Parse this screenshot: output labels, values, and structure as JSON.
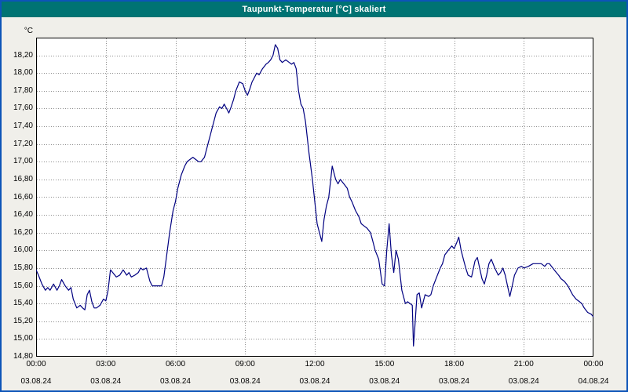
{
  "window": {
    "title": "Taupunkt-Temperatur [°C] skaliert",
    "title_bar_color": "#007373",
    "border_color": "#0d54b8",
    "background_color": "#f0efea"
  },
  "chart_data": {
    "type": "line",
    "title": "Taupunkt-Temperatur [°C] skaliert",
    "xlabel": "",
    "ylabel": "°C",
    "ylim": [
      14.8,
      18.4
    ],
    "xlim_hours": [
      0,
      24
    ],
    "grid": "dotted",
    "grid_color": "#8f8f8f",
    "line_color": "#000080",
    "legend": "none",
    "y_ticks": {
      "values": [
        18.2,
        18.0,
        17.8,
        17.6,
        17.4,
        17.2,
        17.0,
        16.8,
        16.6,
        16.4,
        16.2,
        16.0,
        15.8,
        15.6,
        15.4,
        15.2,
        15.0,
        14.8
      ],
      "labels": [
        "18,20",
        "18,00",
        "17,80",
        "17,60",
        "17,40",
        "17,20",
        "17,00",
        "16,80",
        "16,60",
        "16,40",
        "16,20",
        "16,00",
        "15,80",
        "15,60",
        "15,40",
        "15,20",
        "15,00",
        "14,80"
      ]
    },
    "x_ticks": {
      "hours": [
        0,
        3,
        6,
        9,
        12,
        15,
        18,
        21,
        24
      ],
      "time_labels": [
        "00:00",
        "03:00",
        "06:00",
        "09:00",
        "12:00",
        "15:00",
        "18:00",
        "21:00",
        "00:00"
      ],
      "date_labels": [
        "03.08.24",
        "03.08.24",
        "03.08.24",
        "03.08.24",
        "03.08.24",
        "03.08.24",
        "03.08.24",
        "03.08.24",
        "04.08.24"
      ]
    },
    "series": [
      {
        "name": "Taupunkt-Temperatur",
        "x": [
          0,
          0.1,
          0.25,
          0.4,
          0.5,
          0.6,
          0.75,
          0.9,
          1,
          1.1,
          1.25,
          1.4,
          1.5,
          1.6,
          1.75,
          1.9,
          2,
          2.1,
          2.2,
          2.3,
          2.4,
          2.5,
          2.6,
          2.75,
          2.9,
          3,
          3.1,
          3.2,
          3.3,
          3.45,
          3.6,
          3.75,
          3.9,
          4,
          4.1,
          4.25,
          4.4,
          4.5,
          4.6,
          4.75,
          4.9,
          5,
          5.2,
          5.4,
          5.5,
          5.6,
          5.75,
          5.9,
          6,
          6.1,
          6.25,
          6.4,
          6.5,
          6.6,
          6.75,
          6.9,
          7,
          7.1,
          7.25,
          7.4,
          7.5,
          7.6,
          7.75,
          7.9,
          8,
          8.1,
          8.2,
          8.3,
          8.4,
          8.5,
          8.6,
          8.75,
          8.9,
          9,
          9.1,
          9.2,
          9.3,
          9.4,
          9.5,
          9.6,
          9.75,
          9.9,
          10,
          10.1,
          10.2,
          10.3,
          10.4,
          10.5,
          10.6,
          10.75,
          10.9,
          11,
          11.1,
          11.2,
          11.3,
          11.4,
          11.5,
          11.6,
          11.75,
          11.9,
          12,
          12.1,
          12.2,
          12.3,
          12.4,
          12.5,
          12.6,
          12.75,
          12.9,
          13,
          13.1,
          13.25,
          13.4,
          13.5,
          13.6,
          13.75,
          13.9,
          14,
          14.1,
          14.25,
          14.4,
          14.5,
          14.6,
          14.75,
          14.9,
          15,
          15.1,
          15.2,
          15.3,
          15.4,
          15.5,
          15.6,
          15.75,
          15.9,
          16,
          16.1,
          16.2,
          16.25,
          16.3,
          16.4,
          16.5,
          16.6,
          16.75,
          16.9,
          17,
          17.1,
          17.25,
          17.4,
          17.5,
          17.6,
          17.75,
          17.9,
          18,
          18.1,
          18.2,
          18.3,
          18.4,
          18.5,
          18.6,
          18.75,
          18.9,
          19,
          19.1,
          19.2,
          19.3,
          19.4,
          19.5,
          19.6,
          19.75,
          19.9,
          20,
          20.1,
          20.2,
          20.3,
          20.4,
          20.5,
          20.6,
          20.75,
          20.9,
          21,
          21.2,
          21.4,
          21.6,
          21.75,
          21.9,
          22,
          22.1,
          22.25,
          22.4,
          22.5,
          22.6,
          22.75,
          22.9,
          23,
          23.1,
          23.25,
          23.4,
          23.5,
          23.6,
          23.75,
          23.9,
          24
        ],
        "y": [
          15.78,
          15.72,
          15.62,
          15.55,
          15.58,
          15.55,
          15.62,
          15.55,
          15.6,
          15.67,
          15.6,
          15.55,
          15.58,
          15.45,
          15.35,
          15.38,
          15.35,
          15.33,
          15.5,
          15.55,
          15.42,
          15.35,
          15.35,
          15.38,
          15.45,
          15.43,
          15.55,
          15.78,
          15.75,
          15.7,
          15.72,
          15.78,
          15.72,
          15.75,
          15.7,
          15.72,
          15.75,
          15.8,
          15.78,
          15.8,
          15.65,
          15.6,
          15.6,
          15.6,
          15.7,
          15.9,
          16.2,
          16.45,
          16.55,
          16.7,
          16.85,
          16.95,
          17.0,
          17.02,
          17.05,
          17.02,
          17.0,
          17.0,
          17.05,
          17.2,
          17.3,
          17.4,
          17.55,
          17.62,
          17.6,
          17.65,
          17.6,
          17.55,
          17.62,
          17.7,
          17.8,
          17.9,
          17.88,
          17.8,
          17.75,
          17.82,
          17.9,
          17.95,
          18.0,
          17.98,
          18.05,
          18.1,
          18.12,
          18.15,
          18.2,
          18.32,
          18.28,
          18.15,
          18.12,
          18.15,
          18.12,
          18.1,
          18.12,
          18.05,
          17.8,
          17.65,
          17.6,
          17.45,
          17.1,
          16.8,
          16.55,
          16.3,
          16.2,
          16.1,
          16.35,
          16.5,
          16.6,
          16.95,
          16.8,
          16.75,
          16.8,
          16.75,
          16.7,
          16.6,
          16.55,
          16.45,
          16.38,
          16.3,
          16.28,
          16.25,
          16.2,
          16.1,
          16.0,
          15.9,
          15.62,
          15.6,
          16.0,
          16.3,
          15.95,
          15.75,
          16.0,
          15.9,
          15.55,
          15.4,
          15.42,
          15.4,
          15.38,
          14.92,
          15.1,
          15.5,
          15.52,
          15.35,
          15.5,
          15.48,
          15.5,
          15.6,
          15.7,
          15.8,
          15.85,
          15.95,
          16.0,
          16.05,
          16.02,
          16.08,
          16.15,
          16.0,
          15.9,
          15.8,
          15.72,
          15.7,
          15.88,
          15.92,
          15.8,
          15.68,
          15.62,
          15.72,
          15.85,
          15.9,
          15.8,
          15.72,
          15.75,
          15.8,
          15.72,
          15.6,
          15.48,
          15.6,
          15.72,
          15.8,
          15.82,
          15.8,
          15.82,
          15.85,
          15.85,
          15.85,
          15.82,
          15.85,
          15.85,
          15.8,
          15.75,
          15.72,
          15.68,
          15.65,
          15.6,
          15.55,
          15.5,
          15.45,
          15.42,
          15.4,
          15.35,
          15.3,
          15.28,
          15.25
        ]
      }
    ]
  }
}
